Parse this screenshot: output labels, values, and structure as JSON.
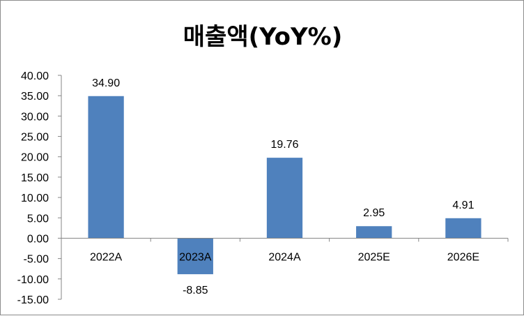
{
  "chart_data": {
    "type": "bar",
    "title": "매출액(YoY%)",
    "categories": [
      "2022A",
      "2023A",
      "2024A",
      "2025E",
      "2026E"
    ],
    "values": [
      34.9,
      -8.85,
      19.76,
      2.95,
      4.91
    ],
    "data_labels": [
      "34.90",
      "-8.85",
      "19.76",
      "2.95",
      "4.91"
    ],
    "y_ticks": [
      "40.00",
      "35.00",
      "30.00",
      "25.00",
      "20.00",
      "15.00",
      "10.00",
      "5.00",
      "0.00",
      "-5.00",
      "-10.00",
      "-15.00"
    ],
    "ylim": [
      -15,
      40
    ],
    "grid": false,
    "legend": "none",
    "bar_color": "#4f81bd",
    "axis_color": "#868686"
  }
}
